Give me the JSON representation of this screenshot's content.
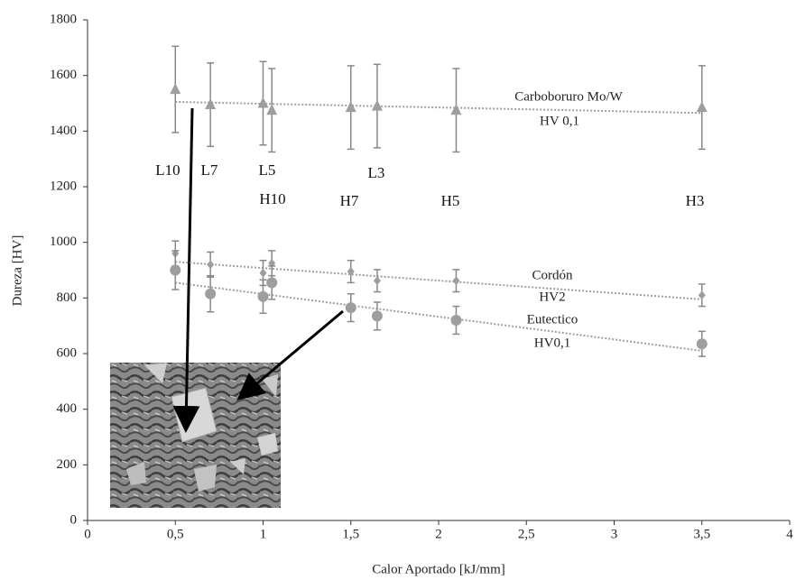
{
  "chart_data": {
    "type": "scatter",
    "x_label": "Calor Aportado [kJ/mm]",
    "y_label": "Dureza [HV]",
    "xlim": [
      0,
      4
    ],
    "xticks": [
      0,
      {
        "value": 0.5,
        "label": "0,5"
      },
      1,
      {
        "value": 1.5,
        "label": "1,5"
      },
      2,
      {
        "value": 2.5,
        "label": "2,5"
      },
      3,
      {
        "value": 3.5,
        "label": "3,5"
      },
      4
    ],
    "ylim": [
      0,
      1800
    ],
    "yticks": [
      0,
      200,
      400,
      600,
      800,
      1000,
      1200,
      1400,
      1600,
      1800
    ],
    "x": [
      0.5,
      0.7,
      1.0,
      1.05,
      1.5,
      1.65,
      2.1,
      3.5
    ],
    "series": [
      {
        "name": "Carboboruro Mo/W",
        "subtitle": "HV 0,1",
        "color": "#9e9e9e",
        "marker": "triangle",
        "values": [
          1550,
          1495,
          1500,
          1475,
          1485,
          1490,
          1475,
          1485
        ],
        "errors": [
          155,
          150,
          150,
          150,
          150,
          150,
          150,
          150
        ],
        "trendline": [
          1505,
          1465
        ]
      },
      {
        "name": "Cordón",
        "subtitle": "HV2",
        "color": "#9e9e9e",
        "marker": "diamond",
        "values": [
          960,
          920,
          890,
          925,
          895,
          862,
          862,
          810
        ],
        "errors": [
          45,
          45,
          45,
          45,
          40,
          40,
          40,
          40
        ],
        "trendline": [
          930,
          795
        ]
      },
      {
        "name": "Eutectico",
        "subtitle": "HV0,1",
        "color": "#9e9e9e",
        "marker": "circle",
        "values": [
          900,
          815,
          805,
          855,
          765,
          735,
          720,
          635
        ],
        "errors": [
          70,
          65,
          60,
          60,
          50,
          50,
          50,
          45
        ],
        "trendline": [
          855,
          610
        ]
      }
    ],
    "annotations": [
      "L10",
      "L7",
      "L5",
      "H10",
      "L3",
      "H7",
      "H5",
      "H3"
    ]
  }
}
